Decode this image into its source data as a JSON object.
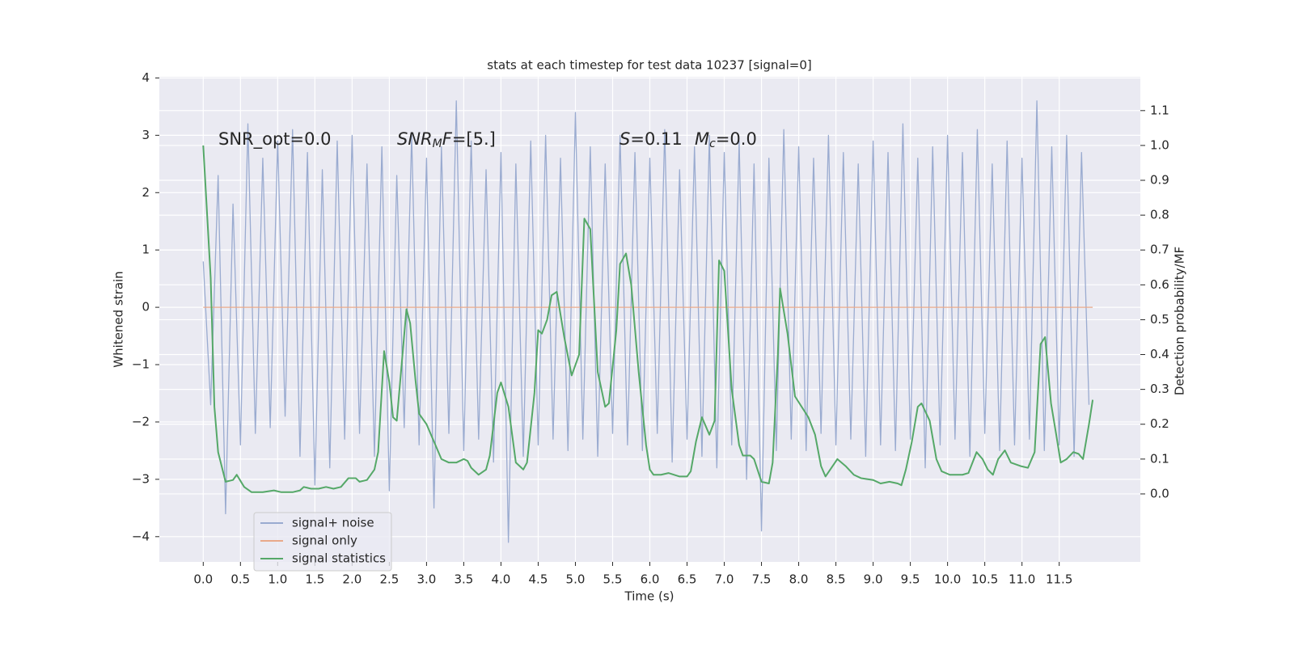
{
  "chart_data": {
    "type": "line",
    "title": "stats at each timestep for test data 10237 [signal=0]",
    "xlabel": "Time (s)",
    "ylabel": "Whitened strain",
    "y2label": "Detection probability/MF",
    "xlim": [
      -0.59,
      12.59
    ],
    "ylim": [
      -4.44,
      4.02
    ],
    "y2lim": [
      -0.195,
      1.197
    ],
    "xticks": [
      {
        "value": 0,
        "label": "0.0"
      },
      0.5,
      {
        "value": 1,
        "label": "1.0"
      },
      1.5,
      {
        "value": 2,
        "label": "2.0"
      },
      2.5,
      {
        "value": 3,
        "label": "3.0"
      },
      3.5,
      {
        "value": 4,
        "label": "4.0"
      },
      4.5,
      {
        "value": 5,
        "label": "5.0"
      },
      5.5,
      {
        "value": 6,
        "label": "6.0"
      },
      6.5,
      {
        "value": 7,
        "label": "7.0"
      },
      7.5,
      {
        "value": 8,
        "label": "8.0"
      },
      8.5,
      {
        "value": 9,
        "label": "9.0"
      },
      9.5,
      {
        "value": 10,
        "label": "10.0"
      },
      10.5,
      {
        "value": 11,
        "label": "11.0"
      },
      11.5
    ],
    "yticks": [
      {
        "value": -4,
        "label": "−4"
      },
      {
        "value": -3,
        "label": "−3"
      },
      {
        "value": -2,
        "label": "−2"
      },
      {
        "value": -1,
        "label": "−1"
      },
      0,
      1,
      2,
      3,
      4
    ],
    "y2ticks": [
      {
        "value": 0,
        "label": "0.0"
      },
      0.1,
      0.2,
      0.3,
      0.4,
      0.5,
      0.6,
      0.7,
      0.8,
      0.9,
      {
        "value": 1,
        "label": "1.0"
      },
      1.1
    ],
    "grid": true,
    "legend": "lower left",
    "annotations": [
      [
        "SNR_opt=0.0"
      ],
      [
        {
          "text": "SNR",
          "italic": true
        },
        {
          "text": "M",
          "italic": true,
          "sub": true
        },
        {
          "text": "F",
          "italic": true
        },
        "=[5.]"
      ],
      [
        {
          "text": "S",
          "italic": true
        },
        "=0.11"
      ],
      [
        {
          "text": "M",
          "italic": true
        },
        {
          "text": "c",
          "italic": true,
          "sub": true
        },
        "=0.0"
      ]
    ],
    "series": [
      {
        "name": "signal+ noise",
        "color": "#9aabd0",
        "x": [
          0.0,
          0.1,
          0.2,
          0.3,
          0.4,
          0.5,
          0.6,
          0.7,
          0.8,
          0.9,
          1.0,
          1.1,
          1.2,
          1.3,
          1.4,
          1.5,
          1.6,
          1.7,
          1.8,
          1.9,
          2.0,
          2.1,
          2.2,
          2.3,
          2.4,
          2.5,
          2.6,
          2.7,
          2.8,
          2.9,
          3.0,
          3.1,
          3.2,
          3.3,
          3.4,
          3.5,
          3.6,
          3.7,
          3.8,
          3.9,
          4.0,
          4.1,
          4.2,
          4.3,
          4.4,
          4.5,
          4.6,
          4.7,
          4.8,
          4.9,
          5.0,
          5.1,
          5.2,
          5.3,
          5.4,
          5.5,
          5.6,
          5.7,
          5.8,
          5.9,
          6.0,
          6.1,
          6.2,
          6.3,
          6.4,
          6.5,
          6.6,
          6.7,
          6.8,
          6.9,
          7.0,
          7.1,
          7.2,
          7.3,
          7.4,
          7.5,
          7.6,
          7.7,
          7.8,
          7.9,
          8.0,
          8.1,
          8.2,
          8.3,
          8.4,
          8.5,
          8.6,
          8.7,
          8.8,
          8.9,
          9.0,
          9.1,
          9.2,
          9.3,
          9.4,
          9.5,
          9.6,
          9.7,
          9.8,
          9.9,
          10.0,
          10.1,
          10.2,
          10.3,
          10.4,
          10.5,
          10.6,
          10.7,
          10.8,
          10.9,
          11.0,
          11.1,
          11.2,
          11.3,
          11.4,
          11.5,
          11.6,
          11.7,
          11.8,
          11.9
        ],
        "values": [
          0.8,
          -1.7,
          2.3,
          -3.6,
          1.8,
          -2.4,
          3.2,
          -2.2,
          2.6,
          -2.1,
          2.9,
          -1.9,
          3.1,
          -2.6,
          2.7,
          -3.1,
          2.4,
          -2.8,
          2.9,
          -2.3,
          3.0,
          -2.2,
          2.5,
          -2.6,
          2.8,
          -3.2,
          2.3,
          -2.1,
          3.0,
          -2.4,
          2.6,
          -3.5,
          2.8,
          -2.2,
          3.6,
          -2.5,
          2.9,
          -2.3,
          2.4,
          -2.7,
          2.7,
          -4.1,
          2.5,
          -2.6,
          2.9,
          -2.4,
          3.0,
          -2.3,
          2.6,
          -2.5,
          3.4,
          -2.3,
          2.8,
          -2.6,
          2.5,
          -2.2,
          3.0,
          -2.4,
          2.7,
          -2.5,
          2.6,
          -2.2,
          3.1,
          -2.7,
          2.4,
          -2.3,
          2.8,
          -2.6,
          3.0,
          -2.8,
          2.7,
          -2.4,
          2.9,
          -3.0,
          2.5,
          -3.9,
          2.6,
          -2.5,
          3.1,
          -2.3,
          2.8,
          -2.5,
          2.6,
          -2.2,
          3.0,
          -2.4,
          2.7,
          -2.3,
          2.5,
          -2.6,
          2.9,
          -2.4,
          2.7,
          -2.5,
          3.2,
          -2.3,
          2.6,
          -2.8,
          2.8,
          -2.4,
          3.0,
          -2.3,
          2.7,
          -2.6,
          3.1,
          -2.2,
          2.5,
          -2.5,
          2.9,
          -2.4,
          2.6,
          -2.3,
          3.6,
          -2.5,
          2.8,
          -2.4,
          3.0,
          -2.6,
          2.7,
          -1.7
        ]
      },
      {
        "name": "signal only",
        "color": "#e9a98a",
        "x": [
          0.0,
          11.95
        ],
        "values": [
          0,
          0
        ]
      },
      {
        "name": "signal statistics",
        "color": "#55a868",
        "axis": "y2",
        "x": [
          0.0,
          0.1,
          0.15,
          0.2,
          0.3,
          0.4,
          0.45,
          0.55,
          0.65,
          0.8,
          0.95,
          1.05,
          1.2,
          1.3,
          1.35,
          1.45,
          1.55,
          1.65,
          1.75,
          1.85,
          1.95,
          2.05,
          2.1,
          2.2,
          2.3,
          2.35,
          2.43,
          2.5,
          2.55,
          2.6,
          2.73,
          2.78,
          2.85,
          2.9,
          3.0,
          3.1,
          3.2,
          3.3,
          3.4,
          3.5,
          3.55,
          3.6,
          3.7,
          3.8,
          3.85,
          3.95,
          4.0,
          4.1,
          4.2,
          4.3,
          4.35,
          4.45,
          4.5,
          4.55,
          4.62,
          4.68,
          4.75,
          4.85,
          4.95,
          5.05,
          5.12,
          5.2,
          5.3,
          5.4,
          5.45,
          5.55,
          5.6,
          5.68,
          5.75,
          5.85,
          5.95,
          6.0,
          6.05,
          6.15,
          6.25,
          6.4,
          6.5,
          6.55,
          6.62,
          6.7,
          6.8,
          6.87,
          6.93,
          7.0,
          7.1,
          7.2,
          7.25,
          7.35,
          7.4,
          7.5,
          7.6,
          7.65,
          7.72,
          7.75,
          7.85,
          7.95,
          8.13,
          8.22,
          8.3,
          8.36,
          8.52,
          8.63,
          8.74,
          8.84,
          9.0,
          9.1,
          9.22,
          9.33,
          9.38,
          9.44,
          9.52,
          9.6,
          9.65,
          9.76,
          9.85,
          9.92,
          10.03,
          10.2,
          10.28,
          10.39,
          10.47,
          10.54,
          10.61,
          10.68,
          10.77,
          10.85,
          10.98,
          11.08,
          11.17,
          11.25,
          11.31,
          11.39,
          11.46,
          11.52,
          11.6,
          11.69,
          11.76,
          11.82,
          11.9,
          11.95
        ],
        "values": [
          1.0,
          0.62,
          0.25,
          0.12,
          0.035,
          0.04,
          0.055,
          0.02,
          0.005,
          0.005,
          0.01,
          0.005,
          0.005,
          0.01,
          0.02,
          0.015,
          0.015,
          0.02,
          0.015,
          0.02,
          0.045,
          0.045,
          0.035,
          0.04,
          0.07,
          0.12,
          0.41,
          0.32,
          0.22,
          0.21,
          0.53,
          0.49,
          0.33,
          0.23,
          0.2,
          0.15,
          0.1,
          0.09,
          0.09,
          0.1,
          0.095,
          0.075,
          0.055,
          0.07,
          0.11,
          0.29,
          0.32,
          0.25,
          0.09,
          0.07,
          0.09,
          0.29,
          0.47,
          0.46,
          0.5,
          0.57,
          0.58,
          0.45,
          0.34,
          0.4,
          0.79,
          0.76,
          0.35,
          0.25,
          0.26,
          0.47,
          0.66,
          0.69,
          0.6,
          0.35,
          0.14,
          0.07,
          0.055,
          0.055,
          0.06,
          0.05,
          0.05,
          0.065,
          0.15,
          0.22,
          0.17,
          0.21,
          0.67,
          0.64,
          0.3,
          0.14,
          0.11,
          0.11,
          0.1,
          0.035,
          0.03,
          0.09,
          0.4,
          0.59,
          0.46,
          0.28,
          0.22,
          0.17,
          0.08,
          0.05,
          0.1,
          0.08,
          0.055,
          0.045,
          0.04,
          0.03,
          0.035,
          0.03,
          0.025,
          0.07,
          0.15,
          0.25,
          0.26,
          0.21,
          0.1,
          0.065,
          0.055,
          0.055,
          0.06,
          0.12,
          0.1,
          0.07,
          0.055,
          0.1,
          0.125,
          0.09,
          0.08,
          0.075,
          0.12,
          0.43,
          0.45,
          0.26,
          0.17,
          0.09,
          0.1,
          0.12,
          0.115,
          0.1,
          0.2,
          0.27
        ]
      }
    ]
  }
}
